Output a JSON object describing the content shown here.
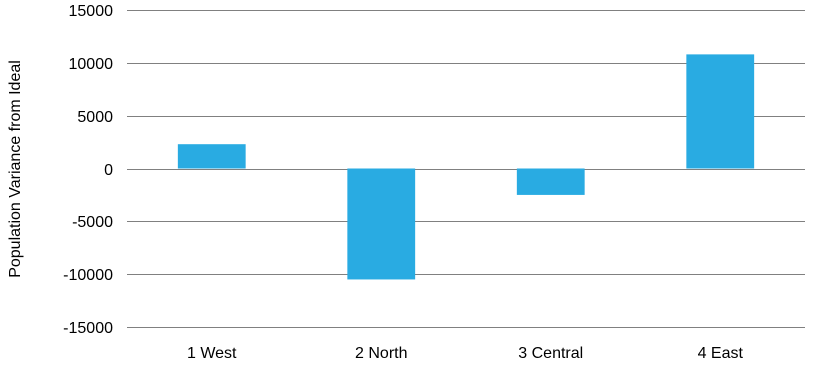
{
  "chart_data": {
    "type": "bar",
    "categories": [
      "1 West",
      "2 North",
      "3 Central",
      "4 East"
    ],
    "values": [
      2300,
      -10500,
      -2500,
      10800
    ],
    "xlabel": "",
    "ylabel": "Population Variance from Ideal",
    "ylim": [
      -15000,
      15000
    ],
    "yticks": [
      "15000",
      "10000",
      "5000",
      "0",
      "-5000",
      "-10000",
      "-15000"
    ],
    "grid": "horizontal",
    "legend": "none",
    "colors": {
      "bar": "#29abe2",
      "grid": "#808080",
      "text": "#000000"
    }
  }
}
